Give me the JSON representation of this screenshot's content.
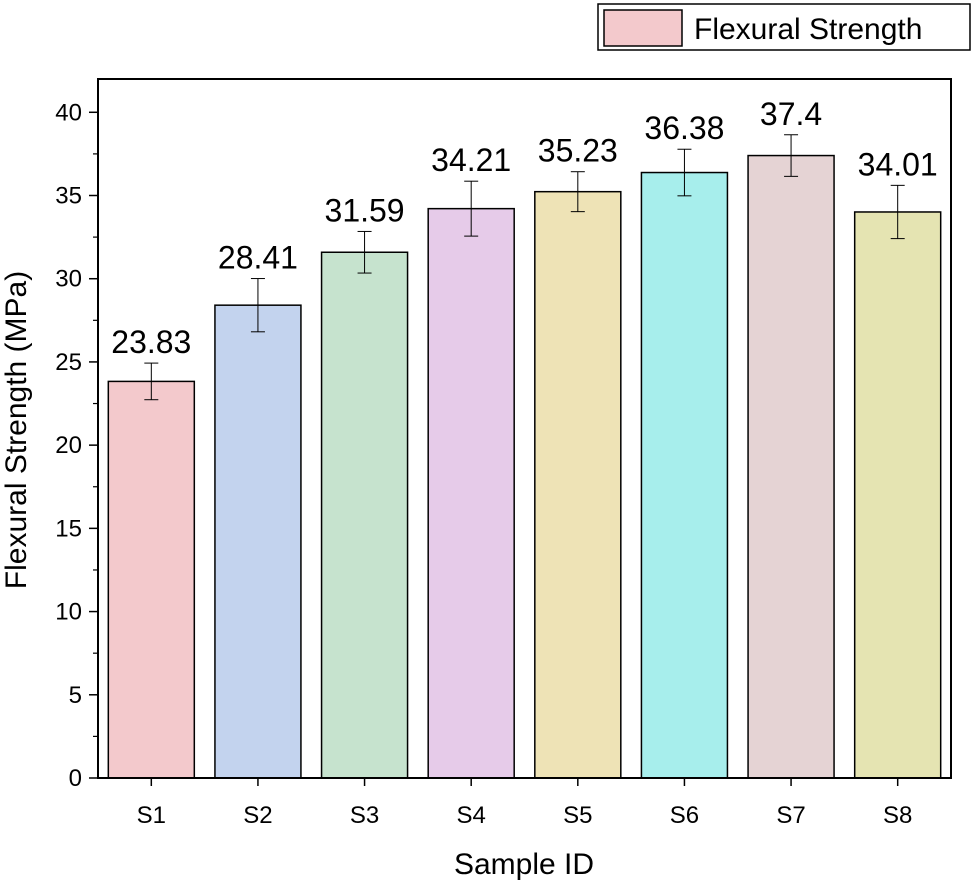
{
  "chart_data": {
    "type": "bar",
    "title": "",
    "xlabel": "Sample ID",
    "ylabel": "Flexural Strength (MPa)",
    "categories": [
      "S1",
      "S2",
      "S3",
      "S4",
      "S5",
      "S6",
      "S7",
      "S8"
    ],
    "series": [
      {
        "name": "Flexural Strength",
        "values": [
          23.83,
          28.41,
          31.59,
          34.21,
          35.23,
          36.38,
          37.4,
          34.01
        ],
        "error": [
          1.1,
          1.6,
          1.25,
          1.65,
          1.2,
          1.4,
          1.25,
          1.6
        ],
        "data_labels": [
          "23.83",
          "28.41",
          "31.59",
          "34.21",
          "35.23",
          "36.38",
          "37.4",
          "34.01"
        ]
      }
    ],
    "bar_colors": [
      "#f3c9cc",
      "#c3d3ee",
      "#c6e3ce",
      "#e6cbe9",
      "#eee3b6",
      "#a7eeec",
      "#e5d3d4",
      "#e5e4b2"
    ],
    "ylim": [
      0,
      42
    ],
    "yticks": [
      0,
      5,
      10,
      15,
      20,
      25,
      30,
      35,
      40
    ],
    "grid": false,
    "legend": "top-right"
  }
}
